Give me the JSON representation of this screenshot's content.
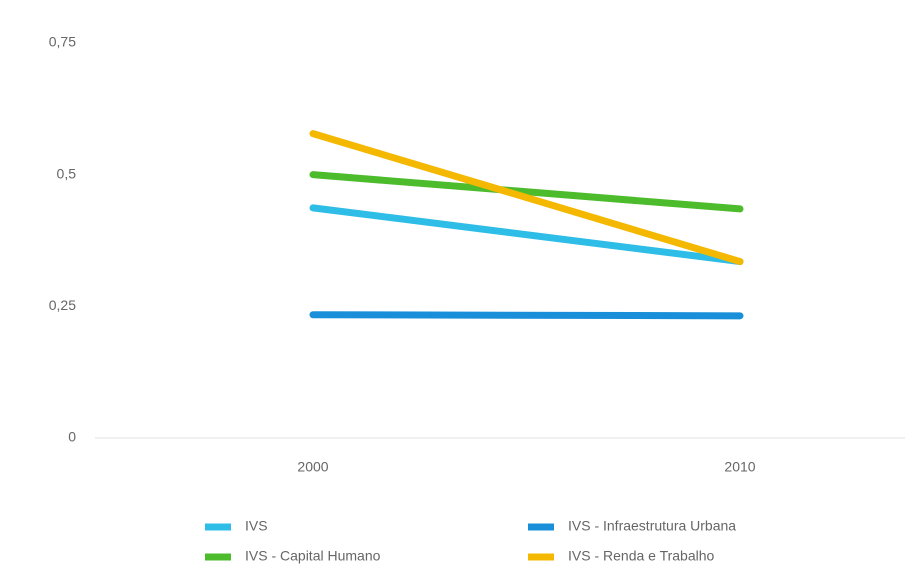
{
  "chart_data": {
    "type": "line",
    "categories": [
      "2000",
      "2010"
    ],
    "series": [
      {
        "name": "IVS",
        "color": "#2ebde6",
        "values": [
          0.437,
          0.335
        ]
      },
      {
        "name": "IVS - Infraestrutura Urbana",
        "color": "#1a8fd9",
        "values": [
          0.234,
          0.232
        ]
      },
      {
        "name": "IVS - Capital Humano",
        "color": "#4cbb2c",
        "values": [
          0.5,
          0.435
        ]
      },
      {
        "name": "IVS - Renda e Trabalho",
        "color": "#f5b800",
        "values": [
          0.578,
          0.335
        ]
      }
    ],
    "ylim": [
      0,
      0.75
    ],
    "yticks": [
      0,
      {
        "value": 0.25,
        "label": "0,25"
      },
      {
        "value": 0.5,
        "label": "0,5"
      },
      {
        "value": 0.75,
        "label": "0,75"
      }
    ],
    "grid": false,
    "legend": "bottom"
  }
}
